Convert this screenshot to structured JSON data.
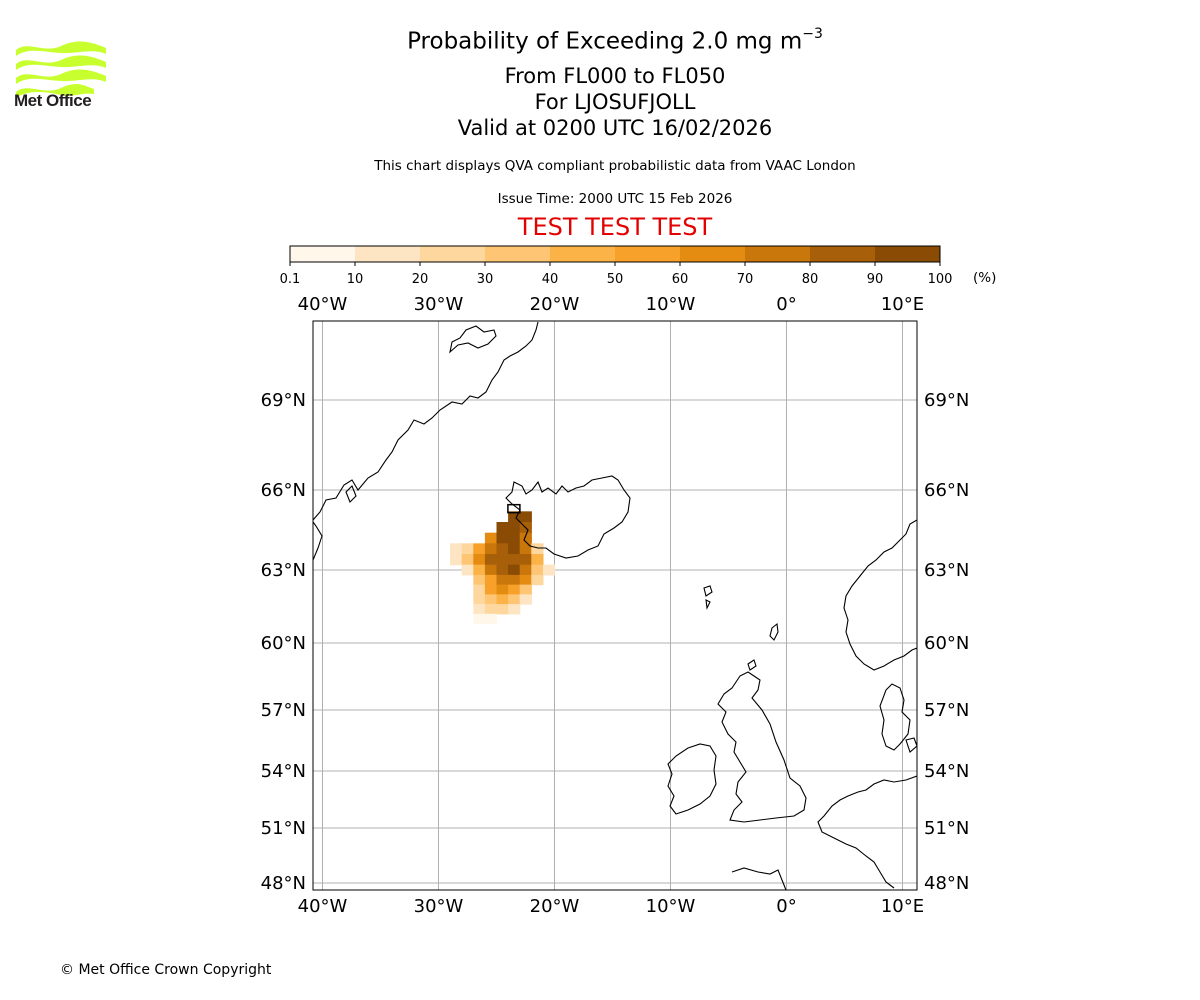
{
  "logo": {
    "name": "Met Office",
    "colors": {
      "waves": "#c8ff2e",
      "text": "#231f20"
    }
  },
  "title": {
    "main": "Probability of Exceeding 2.0 mg m",
    "superscript": "−3",
    "levels": "From FL000 to FL050",
    "volcano": "For LJOSUFJOLL",
    "valid": "Valid at 0200 UTC 16/02/2026"
  },
  "description": "This chart displays QVA compliant probabilistic data from VAAC London",
  "issue_time": "Issue Time: 2000 UTC 15 Feb 2026",
  "test_banner": "TEST TEST TEST",
  "colorbar": {
    "ticks": [
      "0.1",
      "10",
      "20",
      "30",
      "40",
      "50",
      "60",
      "70",
      "80",
      "90",
      "100"
    ],
    "colors": [
      "#fff7ea",
      "#fde4c2",
      "#fdd79d",
      "#fdc574",
      "#fbb247",
      "#f7a02a",
      "#e48b12",
      "#c9760b",
      "#a85f09",
      "#8a4b05",
      "#5e3604"
    ],
    "unit": "(%)"
  },
  "map": {
    "lon_labels": [
      "40°W",
      "30°W",
      "20°W",
      "10°W",
      "0°",
      "10°E"
    ],
    "lat_labels": [
      "69°N",
      "66°N",
      "63°N",
      "60°N",
      "57°N",
      "54°N",
      "51°N",
      "48°N"
    ],
    "plume_cells": [
      [
        -23.5,
        65.0,
        95
      ],
      [
        -22.5,
        65.0,
        90
      ],
      [
        -24.5,
        64.6,
        90
      ],
      [
        -23.5,
        64.6,
        92
      ],
      [
        -22.5,
        64.6,
        80
      ],
      [
        -25.5,
        64.2,
        60
      ],
      [
        -24.5,
        64.2,
        90
      ],
      [
        -23.5,
        64.2,
        95
      ],
      [
        -22.5,
        64.2,
        70
      ],
      [
        -28.5,
        63.8,
        10
      ],
      [
        -27.5,
        63.8,
        20
      ],
      [
        -26.5,
        63.8,
        50
      ],
      [
        -25.5,
        63.8,
        75
      ],
      [
        -24.5,
        63.8,
        85
      ],
      [
        -23.5,
        63.8,
        92
      ],
      [
        -22.5,
        63.8,
        70
      ],
      [
        -21.5,
        63.8,
        25
      ],
      [
        -28.5,
        63.4,
        15
      ],
      [
        -27.5,
        63.4,
        35
      ],
      [
        -26.5,
        63.4,
        65
      ],
      [
        -25.5,
        63.4,
        85
      ],
      [
        -24.5,
        63.4,
        80
      ],
      [
        -23.5,
        63.4,
        88
      ],
      [
        -22.5,
        63.4,
        80
      ],
      [
        -21.5,
        63.4,
        40
      ],
      [
        -27.5,
        63.0,
        15
      ],
      [
        -26.5,
        63.0,
        40
      ],
      [
        -25.5,
        63.0,
        70
      ],
      [
        -24.5,
        63.0,
        85
      ],
      [
        -23.5,
        63.0,
        90
      ],
      [
        -22.5,
        63.0,
        75
      ],
      [
        -21.5,
        63.0,
        30
      ],
      [
        -20.5,
        63.0,
        10
      ],
      [
        -26.5,
        62.6,
        30
      ],
      [
        -25.5,
        62.6,
        55
      ],
      [
        -24.5,
        62.6,
        70
      ],
      [
        -23.5,
        62.6,
        75
      ],
      [
        -22.5,
        62.6,
        60
      ],
      [
        -21.5,
        62.6,
        20
      ],
      [
        -26.5,
        62.2,
        25
      ],
      [
        -25.5,
        62.2,
        50
      ],
      [
        -24.5,
        62.2,
        60
      ],
      [
        -23.5,
        62.2,
        55
      ],
      [
        -22.5,
        62.2,
        35
      ],
      [
        -26.5,
        61.8,
        20
      ],
      [
        -25.5,
        61.8,
        35
      ],
      [
        -24.5,
        61.8,
        40
      ],
      [
        -23.5,
        61.8,
        30
      ],
      [
        -22.5,
        61.8,
        15
      ],
      [
        -26.5,
        61.4,
        10
      ],
      [
        -25.5,
        61.4,
        20
      ],
      [
        -24.5,
        61.4,
        20
      ],
      [
        -23.5,
        61.4,
        10
      ],
      [
        -26.5,
        61.0,
        5
      ],
      [
        -25.5,
        61.0,
        8
      ]
    ]
  }
}
